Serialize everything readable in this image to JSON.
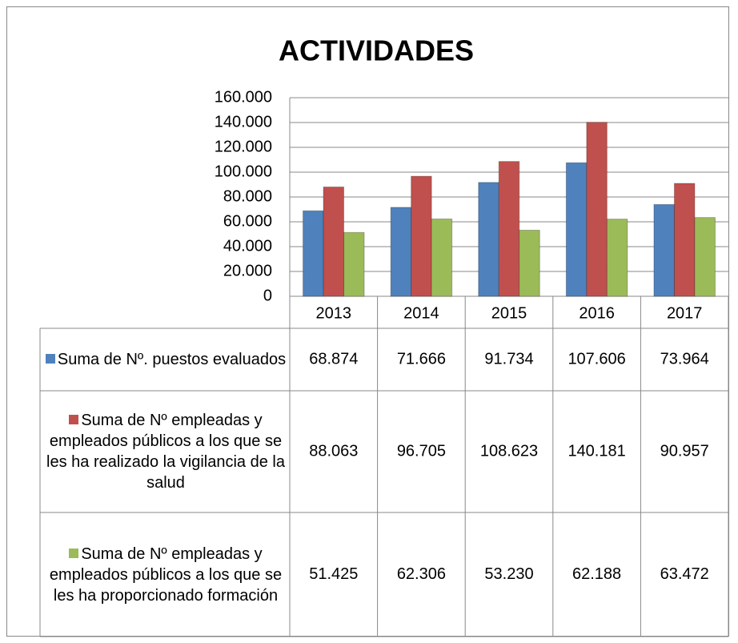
{
  "chart_data": {
    "type": "bar",
    "title": "ACTIVIDADES",
    "categories": [
      "2013",
      "2014",
      "2015",
      "2016",
      "2017"
    ],
    "series": [
      {
        "name": "Suma de Nº. puestos evaluados",
        "color": "#4f81bd",
        "values": [
          68874,
          71666,
          91734,
          107606,
          73964
        ],
        "value_labels": [
          "68.874",
          "71.666",
          "91.734",
          "107.606",
          "73.964"
        ]
      },
      {
        "name": "Suma de Nº empleadas y empleados públicos a los que se les ha realizado la vigilancia de la salud",
        "color": "#c0504d",
        "values": [
          88063,
          96705,
          108623,
          140181,
          90957
        ],
        "value_labels": [
          "88.063",
          "96.705",
          "108.623",
          "140.181",
          "90.957"
        ]
      },
      {
        "name": "Suma de Nº empleadas y empleados públicos a los que se les ha proporcionado formación",
        "color": "#9bbb59",
        "values": [
          51425,
          62306,
          53230,
          62188,
          63472
        ],
        "value_labels": [
          "51.425",
          "62.306",
          "53.230",
          "62.188",
          "63.472"
        ]
      }
    ],
    "ylim": [
      0,
      160000
    ],
    "yticks": [
      0,
      {
        "value": 20000,
        "label": "20.000"
      },
      {
        "value": 40000,
        "label": "40.000"
      },
      {
        "value": 60000,
        "label": "60.000"
      },
      {
        "value": 80000,
        "label": "80.000"
      },
      {
        "value": 100000,
        "label": "100.000"
      },
      {
        "value": 120000,
        "label": "120.000"
      },
      {
        "value": 140000,
        "label": "140.000"
      },
      {
        "value": 160000,
        "label": "160.000"
      }
    ],
    "grid": true
  }
}
